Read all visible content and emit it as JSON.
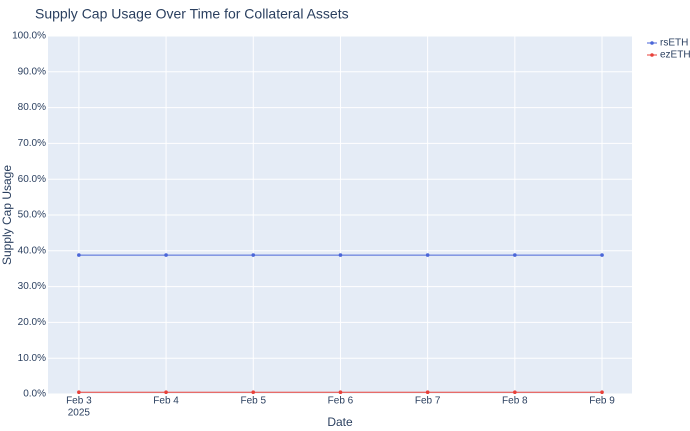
{
  "chart_data": {
    "type": "line",
    "title": "Supply Cap Usage Over Time for Collateral Assets",
    "x_label": "Date",
    "y_label": "Supply Cap Usage",
    "x": [
      "2025-02-03",
      "2025-02-04",
      "2025-02-05",
      "2025-02-06",
      "2025-02-07",
      "2025-02-08",
      "2025-02-09"
    ],
    "series": [
      {
        "name": "rsETH",
        "color": "#4a66d8",
        "values": [
          38.8,
          38.8,
          38.8,
          38.8,
          38.8,
          38.8,
          38.8
        ]
      },
      {
        "name": "ezETH",
        "color": "#e8413a",
        "values": [
          0.5,
          0.5,
          0.5,
          0.5,
          0.5,
          0.5,
          0.5
        ]
      }
    ],
    "xlim": [
      "2025-02-02T15:30",
      "2025-02-09T08:15"
    ],
    "xticks": [
      {
        "value": "2025-02-03",
        "label": "Feb 3"
      },
      {
        "value": "2025-02-04",
        "label": "Feb 4"
      },
      {
        "value": "2025-02-05",
        "label": "Feb 5"
      },
      {
        "value": "2025-02-06",
        "label": "Feb 6"
      },
      {
        "value": "2025-02-07",
        "label": "Feb 7"
      },
      {
        "value": "2025-02-08",
        "label": "Feb 8"
      },
      {
        "value": "2025-02-09",
        "label": "Feb 9"
      }
    ],
    "xticks_year": "2025",
    "ylim": [
      0,
      100
    ],
    "yticks": [
      {
        "value": 0,
        "label": "0.0%"
      },
      {
        "value": 10,
        "label": "10.0%"
      },
      {
        "value": 20,
        "label": "20.0%"
      },
      {
        "value": 30,
        "label": "30.0%"
      },
      {
        "value": 40,
        "label": "40.0%"
      },
      {
        "value": 50,
        "label": "50.0%"
      },
      {
        "value": 60,
        "label": "60.0%"
      },
      {
        "value": 70,
        "label": "70.0%"
      },
      {
        "value": 80,
        "label": "80.0%"
      },
      {
        "value": 90,
        "label": "90.0%"
      },
      {
        "value": 100,
        "label": "100.0%"
      }
    ],
    "grid": true,
    "legend": "top-right"
  }
}
